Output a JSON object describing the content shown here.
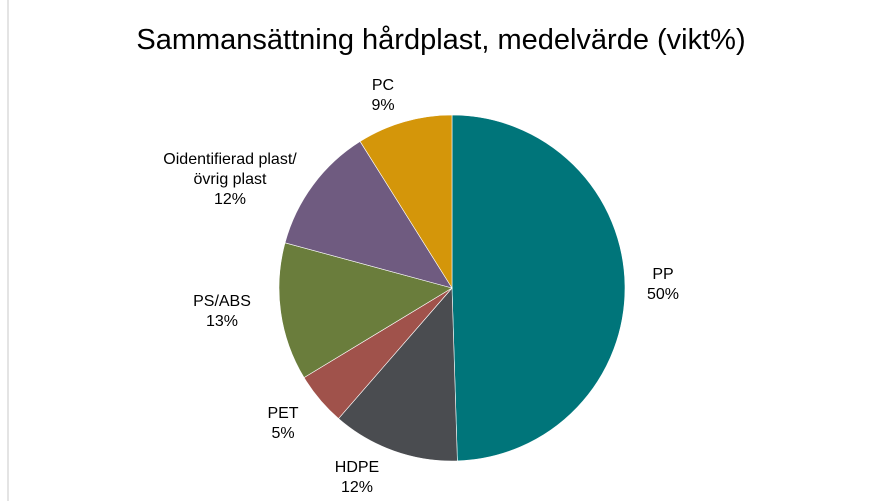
{
  "chart_data": {
    "type": "pie",
    "title": "Sammansättning hårdplast, medelvärde (vikt%)",
    "categories": [
      "PP",
      "HDPE",
      "PET",
      "PS/ABS",
      "Oidentifierad plast/övrig plast",
      "PC"
    ],
    "values": [
      50,
      12,
      5,
      13,
      12,
      9
    ],
    "value_labels": [
      "50%",
      "12%",
      "5%",
      "13%",
      "12%",
      "9%"
    ],
    "colors": [
      "#00757a",
      "#4a4c50",
      "#a0524b",
      "#6a7d3c",
      "#6f5b80",
      "#d4960a"
    ]
  }
}
